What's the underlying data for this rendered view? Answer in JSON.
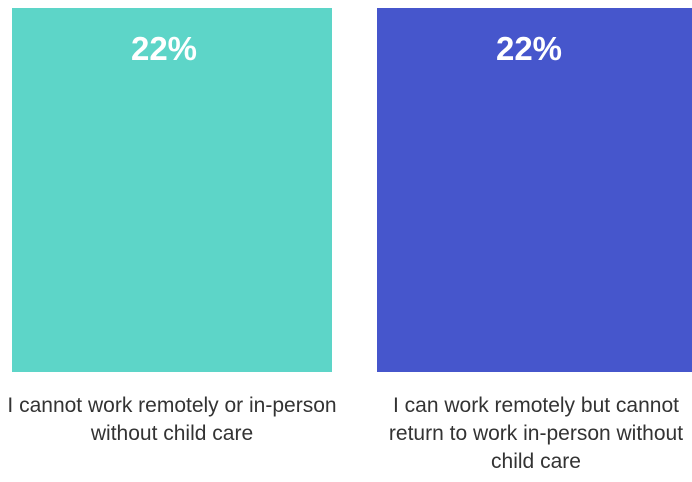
{
  "chart_data": {
    "type": "bar",
    "categories": [
      "I cannot work remotely or in-person without child care",
      "I can work remotely but cannot return to work in-person without child care"
    ],
    "values": [
      22,
      22
    ],
    "value_labels": [
      "22%",
      "22%"
    ],
    "colors": [
      "#5dd5c8",
      "#4656cc"
    ]
  }
}
